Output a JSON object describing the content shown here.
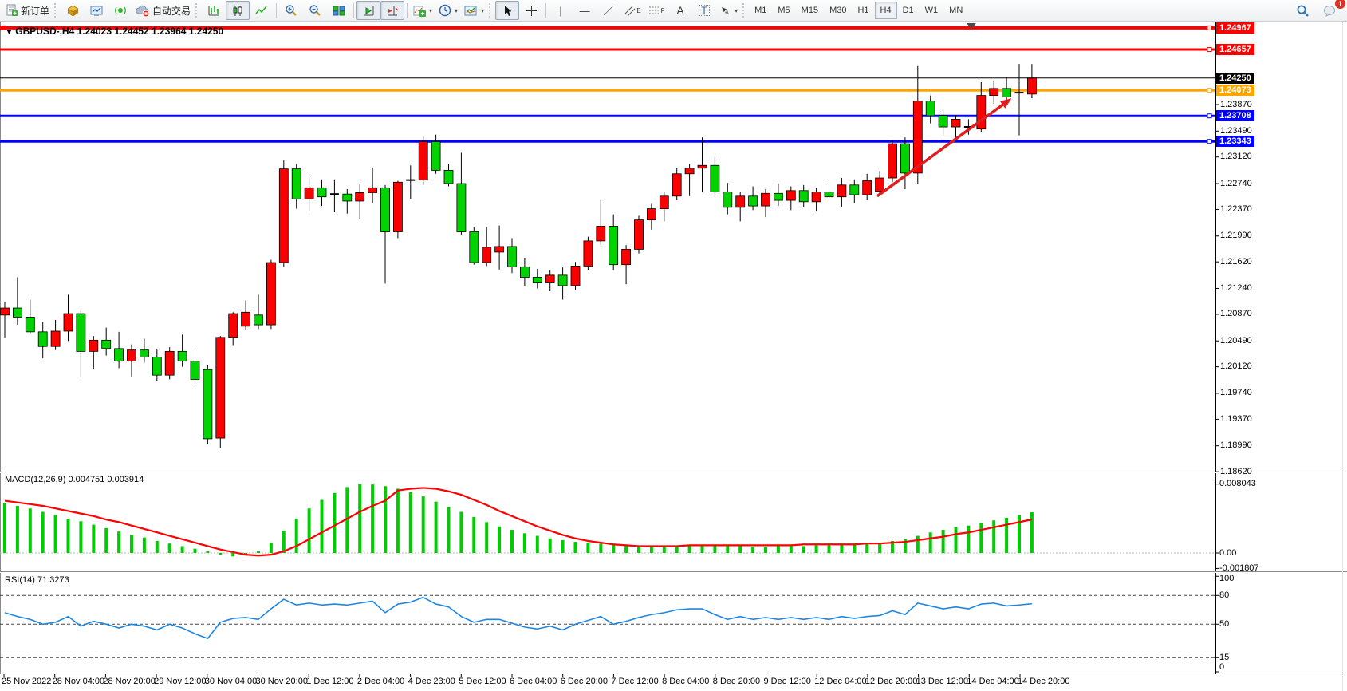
{
  "toolbar": {
    "new_order": "新订单",
    "auto_trading": "自动交易",
    "timeframes": [
      "M1",
      "M5",
      "M15",
      "M30",
      "H1",
      "H4",
      "D1",
      "W1",
      "MN"
    ],
    "active_timeframe": "H4",
    "text_tool": "A",
    "label_tool": "T",
    "channel_suffix": "E",
    "fibo_suffix": "F",
    "notification_count": "1"
  },
  "title": {
    "dropdown_glyph": "▼",
    "symbol_period": "GBPUSD-,H4",
    "ohlc": "1.24023 1.24452 1.23964 1.24250"
  },
  "price_axis": {
    "plain_ticks": [
      "1.23870",
      "1.23490",
      "1.23120",
      "1.22740",
      "1.22370",
      "1.21990",
      "1.21620",
      "1.21240",
      "1.20870",
      "1.20490",
      "1.20120",
      "1.19740",
      "1.19370",
      "1.18990",
      "1.18620"
    ],
    "tags": [
      {
        "text": "1.24967",
        "bg": "#fe0000"
      },
      {
        "text": "1.24657",
        "bg": "#fe0000"
      },
      {
        "text": "1.24250",
        "bg": "#000000"
      },
      {
        "text": "1.24073",
        "bg": "#ffa500"
      },
      {
        "text": "1.23708",
        "bg": "#0000fe"
      },
      {
        "text": "1.23343",
        "bg": "#0000fe"
      }
    ]
  },
  "time_axis": {
    "labels": [
      "25 Nov 2022",
      "28 Nov 04:00",
      "28 Nov 20:00",
      "29 Nov 12:00",
      "30 Nov 04:00",
      "30 Nov 20:00",
      "1 Dec 12:00",
      "2 Dec 04:00",
      "4 Dec 23:00",
      "5 Dec 12:00",
      "6 Dec 04:00",
      "6 Dec 20:00",
      "7 Dec 12:00",
      "8 Dec 04:00",
      "8 Dec 20:00",
      "9 Dec 12:00",
      "12 Dec 04:00",
      "12 Dec 20:00",
      "13 Dec 12:00",
      "14 Dec 04:00",
      "14 Dec 20:00"
    ]
  },
  "macd_panel": {
    "label": "MACD(12,26,9) 0.004751 0.003914",
    "axis": [
      {
        "text": "0.008043",
        "v": 0.008043
      },
      {
        "text": "0.00",
        "v": 0
      },
      {
        "text": "-0.001807",
        "v": -0.001807
      }
    ]
  },
  "rsi_panel": {
    "label": "RSI(14) 71.3273",
    "axis": [
      {
        "text": "100",
        "v": 100
      },
      {
        "text": "80",
        "v": 80
      },
      {
        "text": "50",
        "v": 50
      },
      {
        "text": "15",
        "v": 15
      },
      {
        "text": "0",
        "v": 0
      }
    ]
  },
  "chart_data": {
    "type": "candlestick",
    "symbol": "GBPUSD-",
    "period": "H4",
    "last_quote": {
      "open": 1.24023,
      "high": 1.24452,
      "low": 1.23964,
      "close": 1.2425
    },
    "current_price": 1.2425,
    "colors": {
      "bull": "#fb0000",
      "bear": "#00d300",
      "wick": "#000000",
      "doji": "#000000",
      "macd_hist": "#00cd00",
      "macd_signal": "#ff0000",
      "rsi_line": "#1e86e0",
      "bid_line": "#000000",
      "arrow": "#dd1f1f"
    },
    "candles": [
      [
        1.2086,
        1.2104,
        1.2054,
        1.2096
      ],
      [
        1.2096,
        1.214,
        1.2072,
        1.2083
      ],
      [
        1.2083,
        1.2108,
        1.206,
        1.2062
      ],
      [
        1.2062,
        1.2076,
        1.2024,
        1.2041
      ],
      [
        1.2041,
        1.2079,
        1.2036,
        1.2063
      ],
      [
        1.2063,
        1.2115,
        1.2049,
        1.2088
      ],
      [
        1.2088,
        1.2094,
        1.1996,
        1.2034
      ],
      [
        1.2034,
        1.2056,
        1.2008,
        1.205
      ],
      [
        1.205,
        1.2068,
        1.2028,
        1.2038
      ],
      [
        1.2038,
        1.2062,
        1.201,
        1.202
      ],
      [
        1.202,
        1.2044,
        1.1998,
        1.2036
      ],
      [
        1.2036,
        1.2052,
        1.2018,
        1.2026
      ],
      [
        1.2026,
        1.2038,
        1.1992,
        1.2
      ],
      [
        1.2,
        1.204,
        1.1994,
        1.2034
      ],
      [
        1.2034,
        1.2058,
        1.2012,
        1.202
      ],
      [
        1.202,
        1.2036,
        1.1986,
        1.1994
      ],
      [
        1.2008,
        1.2014,
        1.1902,
        1.1909
      ],
      [
        1.191,
        1.2056,
        1.1896,
        1.2054
      ],
      [
        1.2054,
        1.209,
        1.2043,
        1.2088
      ],
      [
        1.207,
        1.2107,
        1.2064,
        1.209
      ],
      [
        1.2086,
        1.2115,
        1.2066,
        1.2072
      ],
      [
        1.2072,
        1.2165,
        1.2066,
        1.2161
      ],
      [
        1.2161,
        1.2307,
        1.2155,
        1.2295
      ],
      [
        1.2295,
        1.2302,
        1.2238,
        1.2252
      ],
      [
        1.2252,
        1.2282,
        1.2235,
        1.2268
      ],
      [
        1.2268,
        1.228,
        1.2242,
        1.2255
      ],
      [
        1.2256,
        1.228,
        1.2233,
        1.2259
      ],
      [
        1.2259,
        1.2266,
        1.2231,
        1.2249
      ],
      [
        1.2249,
        1.2274,
        1.2223,
        1.2261
      ],
      [
        1.2261,
        1.2297,
        1.2246,
        1.2268
      ],
      [
        1.2268,
        1.2272,
        1.2131,
        1.2205
      ],
      [
        1.2205,
        1.2278,
        1.2196,
        1.2276
      ],
      [
        1.2276,
        1.23,
        1.2252,
        1.2279
      ],
      [
        1.2279,
        1.2341,
        1.2272,
        1.2334
      ],
      [
        1.2334,
        1.2344,
        1.2288,
        1.2293
      ],
      [
        1.2293,
        1.2302,
        1.227,
        1.2274
      ],
      [
        1.2274,
        1.2318,
        1.22,
        1.2205
      ],
      [
        1.2205,
        1.2212,
        1.2158,
        1.2161
      ],
      [
        1.2161,
        1.2212,
        1.2156,
        1.2183
      ],
      [
        1.2176,
        1.2214,
        1.2151,
        1.2184
      ],
      [
        1.2184,
        1.2196,
        1.2146,
        1.2155
      ],
      [
        1.2155,
        1.2168,
        1.2128,
        1.214
      ],
      [
        1.214,
        1.2152,
        1.2124,
        1.2132
      ],
      [
        1.2132,
        1.215,
        1.212,
        1.2143
      ],
      [
        1.2143,
        1.2154,
        1.2108,
        1.2128
      ],
      [
        1.2128,
        1.2162,
        1.2122,
        1.2156
      ],
      [
        1.2156,
        1.2198,
        1.215,
        1.2192
      ],
      [
        1.2192,
        1.225,
        1.2186,
        1.2213
      ],
      [
        1.2213,
        1.223,
        1.215,
        1.2158
      ],
      [
        1.2158,
        1.2186,
        1.213,
        1.218
      ],
      [
        1.218,
        1.2228,
        1.2174,
        1.2222
      ],
      [
        1.2222,
        1.2245,
        1.2208,
        1.2238
      ],
      [
        1.2238,
        1.2262,
        1.222,
        1.2256
      ],
      [
        1.2256,
        1.2296,
        1.225,
        1.2288
      ],
      [
        1.2288,
        1.2302,
        1.2256,
        1.2296
      ],
      [
        1.2296,
        1.234,
        1.2262,
        1.23
      ],
      [
        1.23,
        1.2312,
        1.2255,
        1.2262
      ],
      [
        1.2262,
        1.2275,
        1.223,
        1.224
      ],
      [
        1.224,
        1.2262,
        1.222,
        1.2256
      ],
      [
        1.2256,
        1.227,
        1.2236,
        1.2242
      ],
      [
        1.2242,
        1.2266,
        1.2226,
        1.226
      ],
      [
        1.226,
        1.2274,
        1.2242,
        1.225
      ],
      [
        1.225,
        1.227,
        1.2236,
        1.2264
      ],
      [
        1.2264,
        1.2272,
        1.224,
        1.2248
      ],
      [
        1.2248,
        1.2268,
        1.2234,
        1.2262
      ],
      [
        1.2262,
        1.2276,
        1.2246,
        1.2255
      ],
      [
        1.2255,
        1.2282,
        1.224,
        1.2272
      ],
      [
        1.2272,
        1.228,
        1.2246,
        1.2258
      ],
      [
        1.2258,
        1.2288,
        1.225,
        1.2278
      ],
      [
        1.2263,
        1.2292,
        1.2256,
        1.2282
      ],
      [
        1.2282,
        1.2336,
        1.2276,
        1.2331
      ],
      [
        1.2331,
        1.234,
        1.2266,
        1.2289
      ],
      [
        1.2289,
        1.2442,
        1.2274,
        1.2392
      ],
      [
        1.2392,
        1.24,
        1.236,
        1.2371
      ],
      [
        1.2371,
        1.2378,
        1.2343,
        1.2355
      ],
      [
        1.2355,
        1.2372,
        1.2339,
        1.2366
      ],
      [
        1.2352,
        1.2366,
        1.2344,
        1.2355
      ],
      [
        1.2352,
        1.2419,
        1.2348,
        1.24
      ],
      [
        1.24,
        1.242,
        1.2388,
        1.241
      ],
      [
        1.241,
        1.2426,
        1.2392,
        1.2398
      ],
      [
        1.2402,
        1.2445,
        1.2343,
        1.2404
      ],
      [
        1.2402,
        1.2445,
        1.2396,
        1.2425
      ]
    ],
    "hlines": [
      {
        "price": 1.24967,
        "color": "#fe0000",
        "width": 4,
        "selected": true
      },
      {
        "price": 1.24657,
        "color": "#fe0000",
        "width": 3,
        "selected": false
      },
      {
        "price": 1.24073,
        "color": "#ffa500",
        "width": 3,
        "selected": false
      },
      {
        "price": 1.23708,
        "color": "#0000fe",
        "width": 3,
        "selected": false
      },
      {
        "price": 1.23343,
        "color": "#0000fe",
        "width": 3,
        "selected": false
      }
    ],
    "trend_arrow": {
      "from": {
        "bar": 68.8,
        "price": 1.2256
      },
      "to": {
        "bar": 79.4,
        "price": 1.2396
      }
    },
    "macd": {
      "params": "12,26,9",
      "value": 0.004751,
      "signal_value": 0.003914,
      "histogram": [
        0.0058,
        0.0055,
        0.0052,
        0.0048,
        0.0044,
        0.004,
        0.0037,
        0.0033,
        0.0029,
        0.0025,
        0.0021,
        0.0018,
        0.0014,
        0.0011,
        0.0008,
        0.0005,
        0.0002,
        -0.0002,
        -0.0004,
        -0.0003,
        0.0002,
        0.0012,
        0.0026,
        0.004,
        0.0052,
        0.0062,
        0.007,
        0.0077,
        0.00804,
        0.008,
        0.0078,
        0.0075,
        0.0071,
        0.0066,
        0.006,
        0.0054,
        0.0048,
        0.0042,
        0.0036,
        0.0031,
        0.0027,
        0.0023,
        0.002,
        0.0017,
        0.0015,
        0.0013,
        0.0012,
        0.0011,
        0.001,
        0.0009,
        0.0008,
        0.0008,
        0.0007,
        0.0007,
        0.0008,
        0.0009,
        0.0009,
        0.0008,
        0.0008,
        0.0007,
        0.0007,
        0.0008,
        0.0008,
        0.0008,
        0.0009,
        0.0009,
        0.001,
        0.001,
        0.0011,
        0.0012,
        0.0014,
        0.0016,
        0.002,
        0.0024,
        0.0027,
        0.003,
        0.0032,
        0.0035,
        0.0038,
        0.0041,
        0.0044,
        0.004751
      ],
      "signal": [
        0.0061,
        0.0059,
        0.0057,
        0.0055,
        0.0052,
        0.0049,
        0.0046,
        0.0043,
        0.0039,
        0.0036,
        0.0032,
        0.0028,
        0.0024,
        0.002,
        0.0016,
        0.0012,
        0.0008,
        0.0004,
        0.0001,
        -0.0002,
        -0.0003,
        -0.0002,
        0.0002,
        0.0008,
        0.0016,
        0.0024,
        0.0032,
        0.004,
        0.0048,
        0.0055,
        0.0061,
        0.0073,
        0.0075,
        0.0076,
        0.0075,
        0.0072,
        0.0068,
        0.0062,
        0.0056,
        0.0049,
        0.0043,
        0.0037,
        0.0031,
        0.0026,
        0.0021,
        0.0017,
        0.0014,
        0.0012,
        0.001,
        0.0009,
        0.0008,
        0.0008,
        0.0008,
        0.0008,
        0.0009,
        0.0009,
        0.0009,
        0.0009,
        0.0009,
        0.0009,
        0.0009,
        0.0009,
        0.0009,
        0.001,
        0.001,
        0.001,
        0.001,
        0.001,
        0.0011,
        0.0011,
        0.0012,
        0.0013,
        0.0015,
        0.0017,
        0.0019,
        0.0022,
        0.0024,
        0.0027,
        0.003,
        0.0033,
        0.0036,
        0.003914
      ]
    },
    "rsi": {
      "period": 14,
      "value": 71.3273,
      "levels": [
        80,
        50,
        15
      ],
      "values": [
        62,
        58,
        55,
        50,
        52,
        58,
        48,
        53,
        50,
        46,
        50,
        48,
        44,
        50,
        46,
        40,
        35,
        52,
        56,
        57,
        55,
        66,
        76,
        70,
        72,
        70,
        71,
        70,
        72,
        74,
        62,
        71,
        73,
        78,
        71,
        68,
        58,
        52,
        55,
        55,
        51,
        47,
        45,
        48,
        44,
        50,
        54,
        58,
        50,
        53,
        57,
        60,
        62,
        65,
        66,
        66,
        60,
        55,
        58,
        55,
        57,
        55,
        57,
        55,
        57,
        55,
        58,
        56,
        58,
        59,
        64,
        60,
        72,
        69,
        66,
        68,
        66,
        71,
        72,
        69,
        70,
        71.3
      ]
    }
  }
}
